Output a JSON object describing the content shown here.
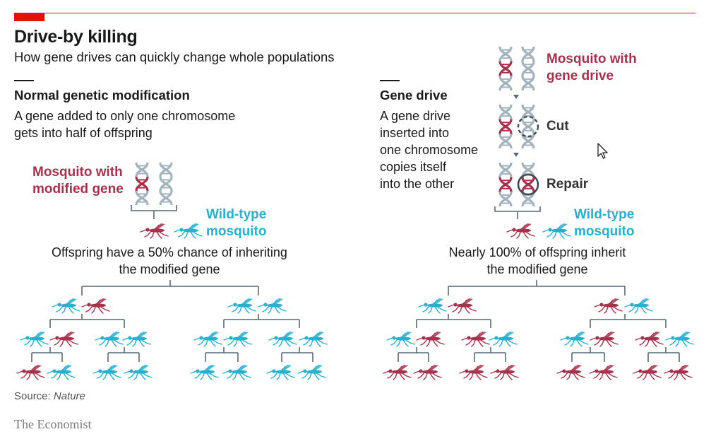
{
  "title": "Drive-by killing",
  "subtitle": "How gene drives can quickly change whole populations",
  "colors": {
    "modified": "#a8314b",
    "wild": "#26b1d1",
    "dna_grey": "#a3b3be",
    "tree": "#55697a",
    "accent": "#e3120b"
  },
  "normal": {
    "heading": "Normal genetic modification",
    "desc_lines": [
      "A gene added to only one chromosome",
      "gets into half of offspring"
    ],
    "modified_label": [
      "Mosquito with",
      "modified gene"
    ],
    "wild_label": [
      "Wild-type",
      "mosquito"
    ],
    "caption": [
      "Offspring have a 50% chance of inheriting",
      "the modified gene"
    ],
    "gen1": [
      "wild",
      "modified",
      "wild",
      "wild"
    ],
    "gen2": [
      "wild",
      "modified",
      "wild",
      "wild",
      "wild",
      "wild",
      "wild",
      "wild"
    ],
    "gen3": [
      "modified",
      "wild",
      "wild",
      "wild",
      "wild",
      "wild",
      "wild",
      "wild"
    ]
  },
  "drive": {
    "heading": "Gene drive",
    "desc_lines": [
      "A gene drive",
      "inserted into",
      "one chromosome",
      "copies itself",
      "into the other"
    ],
    "drive_label": [
      "Mosquito with",
      "gene drive"
    ],
    "cut_label": "Cut",
    "repair_label": "Repair",
    "wild_label": [
      "Wild-type",
      "mosquito"
    ],
    "caption": [
      "Nearly 100% of offspring inherit",
      "the modified gene"
    ],
    "gen1": [
      "wild",
      "modified",
      "modified",
      "wild"
    ],
    "gen2": [
      "wild",
      "modified",
      "modified",
      "wild",
      "wild",
      "modified",
      "modified",
      "wild"
    ],
    "gen3": [
      "modified",
      "modified",
      "modified",
      "modified",
      "modified",
      "modified",
      "modified",
      "modified"
    ]
  },
  "source": {
    "prefix": "Source: ",
    "name": "Nature"
  },
  "brand": "The Economist",
  "icons": [
    "dna-icon",
    "mosquito-icon",
    "cut-icon",
    "repair-icon",
    "cursor-icon"
  ]
}
